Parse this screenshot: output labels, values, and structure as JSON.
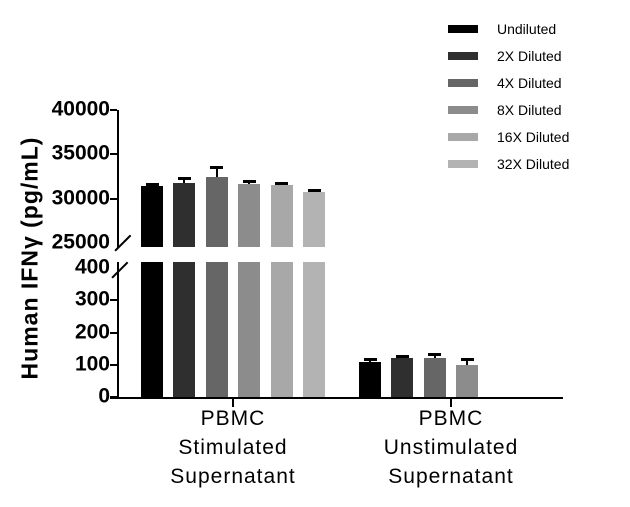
{
  "chart_data": {
    "type": "bar",
    "title": "",
    "ylabel": "Human IFNγ (pg/mL)",
    "xlabel": "",
    "grid": false,
    "legend_position": "top-right",
    "axis_break": true,
    "lower_axis": {
      "range": [
        0,
        400
      ],
      "ticks": [
        0,
        100,
        200,
        300,
        400
      ]
    },
    "upper_axis": {
      "range": [
        25000,
        40000
      ],
      "ticks": [
        25000,
        30000,
        35000,
        40000
      ]
    },
    "categories": [
      "PBMC Stimulated Supernatant",
      "PBMC Unstimulated Supernatant"
    ],
    "group_label_lines": [
      [
        "PBMC",
        "Stimulated",
        "Supernatant"
      ],
      [
        "PBMC",
        "Unstimulated",
        "Supernatant"
      ]
    ],
    "series": [
      {
        "name": "Undiluted",
        "color": "#000000",
        "values": [
          31400,
          108
        ],
        "errors": [
          200,
          8
        ]
      },
      {
        "name": "2X Diluted",
        "color": "#2F2F2F",
        "values": [
          31800,
          121
        ],
        "errors": [
          500,
          6
        ]
      },
      {
        "name": "4X Diluted",
        "color": "#666666",
        "values": [
          32400,
          120
        ],
        "errors": [
          1100,
          13
        ]
      },
      {
        "name": "8X Diluted",
        "color": "#8C8C8C",
        "values": [
          31700,
          98
        ],
        "errors": [
          200,
          18
        ]
      },
      {
        "name": "16X Diluted",
        "color": "#A8A8A8",
        "values": [
          31500,
          null
        ],
        "errors": [
          200,
          null
        ]
      },
      {
        "name": "32X Diluted",
        "color": "#B3B3B3",
        "values": [
          30800,
          null
        ],
        "errors": [
          150,
          null
        ]
      }
    ]
  }
}
